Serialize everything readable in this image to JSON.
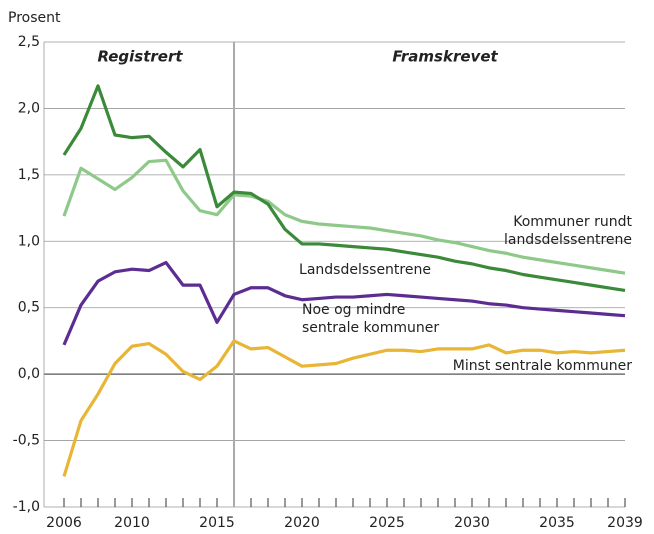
{
  "chart_data": {
    "type": "line",
    "ylabel": "Prosent",
    "annotations": [
      "Registrert",
      "Framskrevet"
    ],
    "vline": 2016,
    "x": [
      2006,
      2007,
      2008,
      2009,
      2010,
      2011,
      2012,
      2013,
      2014,
      2015,
      2016,
      2017,
      2018,
      2019,
      2020,
      2021,
      2022,
      2023,
      2024,
      2025,
      2026,
      2027,
      2028,
      2029,
      2030,
      2031,
      2032,
      2033,
      2034,
      2035,
      2036,
      2037,
      2038,
      2039
    ],
    "xlim": [
      2006,
      2039
    ],
    "xticks": [
      2006,
      2010,
      2015,
      2020,
      2025,
      2030,
      2035,
      2039
    ],
    "ylim": [
      -1.0,
      2.5
    ],
    "yticks": [
      {
        "value": -1.0,
        "label": "-1,0"
      },
      {
        "value": -0.5,
        "label": "-0,5"
      },
      {
        "value": 0,
        "label": "0,0"
      },
      {
        "value": 0.5,
        "label": "0,5"
      },
      {
        "value": 1.0,
        "label": "1,0"
      },
      {
        "value": 1.5,
        "label": "1,5"
      },
      {
        "value": 2.0,
        "label": "2,0"
      },
      {
        "value": 2.5,
        "label": "2,5"
      }
    ],
    "grid": true,
    "series": [
      {
        "name": "Kommuner rundt\nlandsdelssentrene",
        "color": "#8fc98a",
        "values": [
          1.19,
          1.55,
          1.47,
          1.39,
          1.48,
          1.6,
          1.61,
          1.38,
          1.23,
          1.2,
          1.35,
          1.34,
          1.3,
          1.2,
          1.15,
          1.13,
          1.12,
          1.11,
          1.1,
          1.08,
          1.06,
          1.04,
          1.01,
          0.99,
          0.96,
          0.93,
          0.91,
          0.88,
          0.86,
          0.84,
          0.82,
          0.8,
          0.78,
          0.76
        ]
      },
      {
        "name": "Landsdelssentrene",
        "color": "#3a8a3a",
        "values": [
          1.65,
          1.85,
          2.17,
          1.8,
          1.78,
          1.79,
          1.67,
          1.56,
          1.69,
          1.26,
          1.37,
          1.36,
          1.28,
          1.09,
          0.98,
          0.98,
          0.97,
          0.96,
          0.95,
          0.94,
          0.92,
          0.9,
          0.88,
          0.85,
          0.83,
          0.8,
          0.78,
          0.75,
          0.73,
          0.71,
          0.69,
          0.67,
          0.65,
          0.63
        ]
      },
      {
        "name": "Noe og mindre\nsentrale kommuner",
        "color": "#5c2d91",
        "values": [
          0.22,
          0.52,
          0.7,
          0.77,
          0.79,
          0.78,
          0.84,
          0.67,
          0.67,
          0.39,
          0.6,
          0.65,
          0.65,
          0.59,
          0.56,
          0.57,
          0.58,
          0.58,
          0.59,
          0.6,
          0.59,
          0.58,
          0.57,
          0.56,
          0.55,
          0.53,
          0.52,
          0.5,
          0.49,
          0.48,
          0.47,
          0.46,
          0.45,
          0.44
        ]
      },
      {
        "name": "Minst sentrale kommuner",
        "color": "#e8b535",
        "values": [
          -0.77,
          -0.35,
          -0.15,
          0.08,
          0.21,
          0.23,
          0.15,
          0.02,
          -0.04,
          0.06,
          0.25,
          0.19,
          0.2,
          0.13,
          0.06,
          0.07,
          0.08,
          0.12,
          0.15,
          0.18,
          0.18,
          0.17,
          0.19,
          0.19,
          0.19,
          0.22,
          0.16,
          0.18,
          0.18,
          0.16,
          0.17,
          0.16,
          0.17,
          0.18
        ]
      }
    ]
  }
}
